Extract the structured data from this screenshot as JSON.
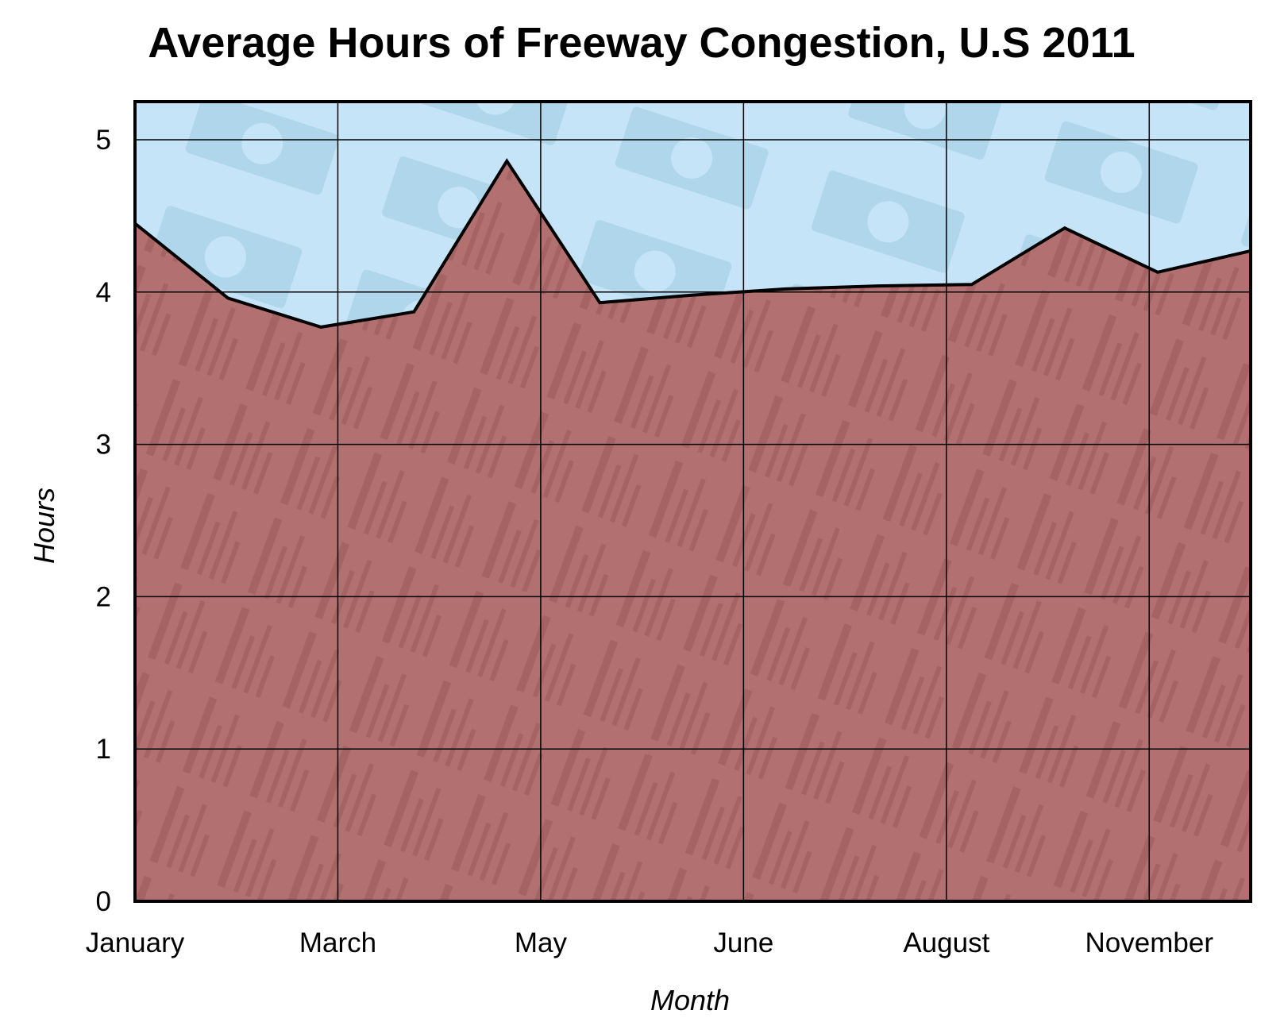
{
  "chart_data": {
    "type": "area",
    "title": "Average Hours of Freeway Congestion, U.S 2011",
    "xlabel": "Month",
    "ylabel": "Hours",
    "x_tick_labels": [
      "January",
      "March",
      "May",
      "June",
      "August",
      "November"
    ],
    "y_tick_labels": [
      "0",
      "1",
      "2",
      "3",
      "4",
      "5"
    ],
    "ylim": [
      0,
      5.25
    ],
    "grid": true,
    "values": [
      4.45,
      3.96,
      3.77,
      3.87,
      4.86,
      3.93,
      3.98,
      4.02,
      4.04,
      4.05,
      4.42,
      4.13,
      4.27
    ],
    "colors": {
      "area_fill": "#b27070",
      "area_texture": "#8f4a4a",
      "background_fill": "#c6e4f7",
      "background_texture": "#9ccbe0",
      "line": "#000000",
      "grid": "#000000"
    }
  }
}
